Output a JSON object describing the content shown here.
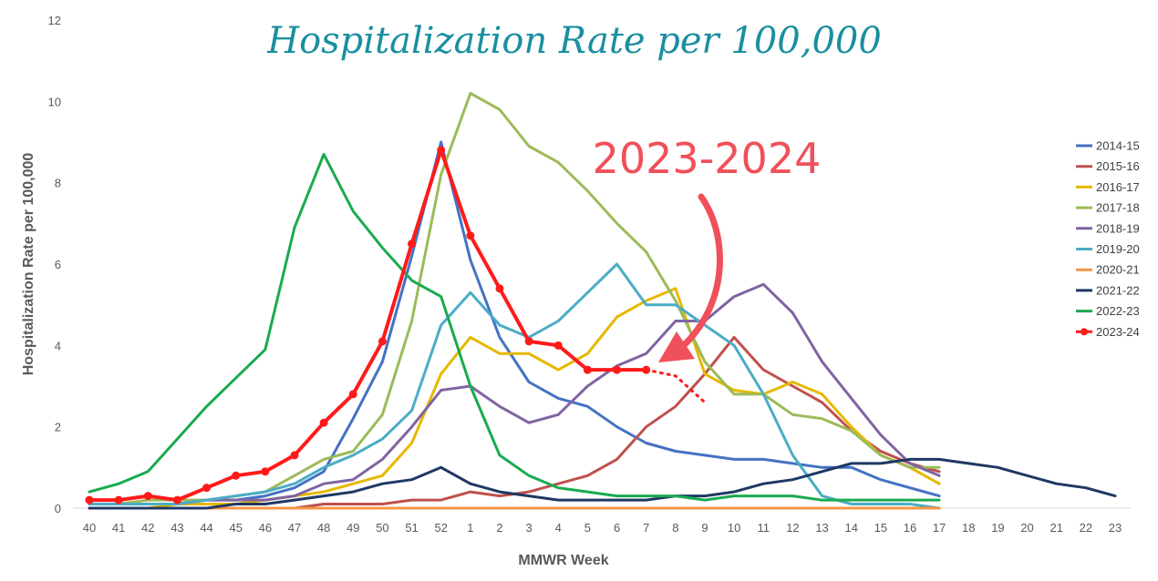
{
  "chart_data": {
    "type": "line",
    "title": "Hospitalization Rate per 100,000",
    "xlabel": "MMWR Week",
    "ylabel": "Hospitalization Rate per 100,000",
    "x": [
      "40",
      "41",
      "42",
      "43",
      "44",
      "45",
      "46",
      "47",
      "48",
      "49",
      "50",
      "51",
      "52",
      "1",
      "2",
      "3",
      "4",
      "5",
      "6",
      "7",
      "8",
      "9",
      "10",
      "11",
      "12",
      "13",
      "14",
      "15",
      "16",
      "17",
      "18",
      "19",
      "20",
      "21",
      "22",
      "23"
    ],
    "y_ticks": [
      "0",
      "2",
      "4",
      "6",
      "8",
      "10",
      "12"
    ],
    "ylim": [
      0,
      12
    ],
    "grid": false,
    "legend_position": "right",
    "annotation": "2023-2024",
    "series": [
      {
        "name": "2014-15",
        "color": "#4472c4",
        "values": [
          0.1,
          0.1,
          0.1,
          0.1,
          0.2,
          0.2,
          0.3,
          0.5,
          0.9,
          2.2,
          3.6,
          6.2,
          9.0,
          6.1,
          4.2,
          3.1,
          2.7,
          2.5,
          2.0,
          1.6,
          1.4,
          1.3,
          1.2,
          1.2,
          1.1,
          1.0,
          1.0,
          0.7,
          0.5,
          0.3,
          null,
          null,
          null,
          null,
          null,
          null
        ]
      },
      {
        "name": "2015-16",
        "color": "#c0504d",
        "values": [
          0.0,
          0.0,
          0.0,
          0.0,
          0.0,
          0.0,
          0.0,
          0.0,
          0.1,
          0.1,
          0.1,
          0.2,
          0.2,
          0.4,
          0.3,
          0.4,
          0.6,
          0.8,
          1.2,
          2.0,
          2.5,
          3.3,
          4.2,
          3.4,
          3.0,
          2.6,
          1.9,
          1.4,
          1.1,
          0.9,
          null,
          null,
          null,
          null,
          null,
          null
        ]
      },
      {
        "name": "2016-17",
        "color": "#e6b800",
        "values": [
          0.0,
          0.0,
          0.0,
          0.1,
          0.1,
          0.1,
          0.2,
          0.3,
          0.4,
          0.6,
          0.8,
          1.6,
          3.3,
          4.2,
          3.8,
          3.8,
          3.4,
          3.8,
          4.7,
          5.1,
          5.4,
          3.3,
          2.9,
          2.8,
          3.1,
          2.8,
          2.0,
          1.3,
          1.0,
          0.6,
          null,
          null,
          null,
          null,
          null,
          null
        ]
      },
      {
        "name": "2017-18",
        "color": "#9bbb59",
        "values": [
          0.1,
          0.1,
          0.2,
          0.2,
          0.2,
          0.3,
          0.4,
          0.8,
          1.2,
          1.4,
          2.3,
          4.6,
          8.2,
          10.2,
          9.8,
          8.9,
          8.5,
          7.8,
          7.0,
          6.3,
          5.1,
          3.6,
          2.8,
          2.8,
          2.3,
          2.2,
          1.9,
          1.3,
          1.0,
          1.0,
          null,
          null,
          null,
          null,
          null,
          null
        ]
      },
      {
        "name": "2018-19",
        "color": "#8064a2",
        "values": [
          0.1,
          0.1,
          0.1,
          0.1,
          0.2,
          0.2,
          0.2,
          0.3,
          0.6,
          0.7,
          1.2,
          2.0,
          2.9,
          3.0,
          2.5,
          2.1,
          2.3,
          3.0,
          3.5,
          3.8,
          4.6,
          4.6,
          5.2,
          5.5,
          4.8,
          3.6,
          2.7,
          1.8,
          1.1,
          0.8,
          null,
          null,
          null,
          null,
          null,
          null
        ]
      },
      {
        "name": "2019-20",
        "color": "#4bacc6",
        "values": [
          0.1,
          0.1,
          0.1,
          0.1,
          0.2,
          0.3,
          0.4,
          0.6,
          1.0,
          1.3,
          1.7,
          2.4,
          4.5,
          5.3,
          4.5,
          4.2,
          4.6,
          5.3,
          6.0,
          5.0,
          5.0,
          4.5,
          4.0,
          2.8,
          1.3,
          0.3,
          0.1,
          0.1,
          0.1,
          0.0,
          null,
          null,
          null,
          null,
          null,
          null
        ]
      },
      {
        "name": "2020-21",
        "color": "#f79646",
        "values": [
          0.0,
          0.0,
          0.0,
          0.0,
          0.0,
          0.0,
          0.0,
          0.0,
          0.0,
          0.0,
          0.0,
          0.0,
          0.0,
          0.0,
          0.0,
          0.0,
          0.0,
          0.0,
          0.0,
          0.0,
          0.0,
          0.0,
          0.0,
          0.0,
          0.0,
          0.0,
          0.0,
          0.0,
          0.0,
          0.0,
          null,
          null,
          null,
          null,
          null,
          null
        ]
      },
      {
        "name": "2021-22",
        "color": "#1f3864",
        "values": [
          0.0,
          0.0,
          0.0,
          0.0,
          0.0,
          0.1,
          0.1,
          0.2,
          0.3,
          0.4,
          0.6,
          0.7,
          1.0,
          0.6,
          0.4,
          0.3,
          0.2,
          0.2,
          0.2,
          0.2,
          0.3,
          0.3,
          0.4,
          0.6,
          0.7,
          0.9,
          1.1,
          1.1,
          1.2,
          1.2,
          1.1,
          1.0,
          0.8,
          0.6,
          0.5,
          0.3
        ]
      },
      {
        "name": "2022-23",
        "color": "#1aaa50",
        "values": [
          0.4,
          0.6,
          0.9,
          1.7,
          2.5,
          3.2,
          3.9,
          6.9,
          8.7,
          7.3,
          6.4,
          5.6,
          5.2,
          3.0,
          1.3,
          0.8,
          0.5,
          0.4,
          0.3,
          0.3,
          0.3,
          0.2,
          0.3,
          0.3,
          0.3,
          0.2,
          0.2,
          0.2,
          0.2,
          0.2,
          null,
          null,
          null,
          null,
          null,
          null
        ]
      },
      {
        "name": "2023-24",
        "color": "#ff1a1a",
        "values": [
          0.2,
          0.2,
          0.3,
          0.2,
          0.5,
          0.8,
          0.9,
          1.3,
          2.1,
          2.8,
          4.1,
          6.5,
          8.8,
          6.7,
          5.4,
          4.1,
          4.0,
          3.4,
          3.4,
          3.4,
          null,
          null,
          null,
          null,
          null,
          null,
          null,
          null,
          null,
          null,
          null,
          null,
          null,
          null,
          null,
          null
        ],
        "projection": [
          [
            19,
            3.4
          ],
          [
            20,
            3.25
          ],
          [
            21,
            2.6
          ]
        ]
      }
    ]
  }
}
